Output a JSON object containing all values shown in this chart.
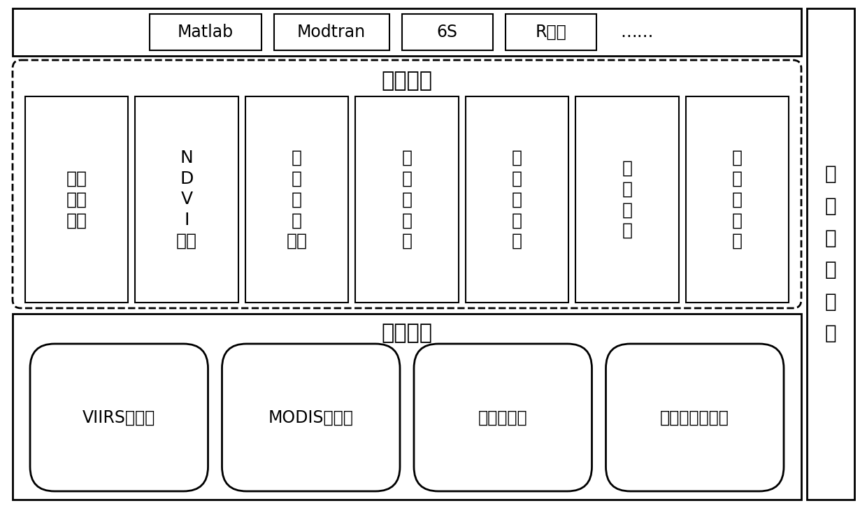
{
  "figsize": [
    12.4,
    7.27
  ],
  "dpi": 100,
  "bg_color": "#ffffff",
  "top_tools": [
    "Matlab",
    "Modtran",
    "6S",
    "R语言",
    "……"
  ],
  "rs_data_label": "遥感数据",
  "rs_data_items": [
    "原始\n影像\n数据",
    "N\nD\nV\nI\n数据",
    "覆\n盖\n类\n型\n数据",
    "发\n射\n率\n数\n据",
    "反\n射\n率\n数\n据",
    "气\n象\n数\n据",
    "气\n溶\n胶\n数\n据"
  ],
  "right_label": "数\n据\n计\n算\n平\n台",
  "bottom_section_label": "数据来源",
  "bottom_items": [
    "VIIRS传感器",
    "MODIS传感器",
    "地面监测站",
    "实验室测量仪器"
  ]
}
